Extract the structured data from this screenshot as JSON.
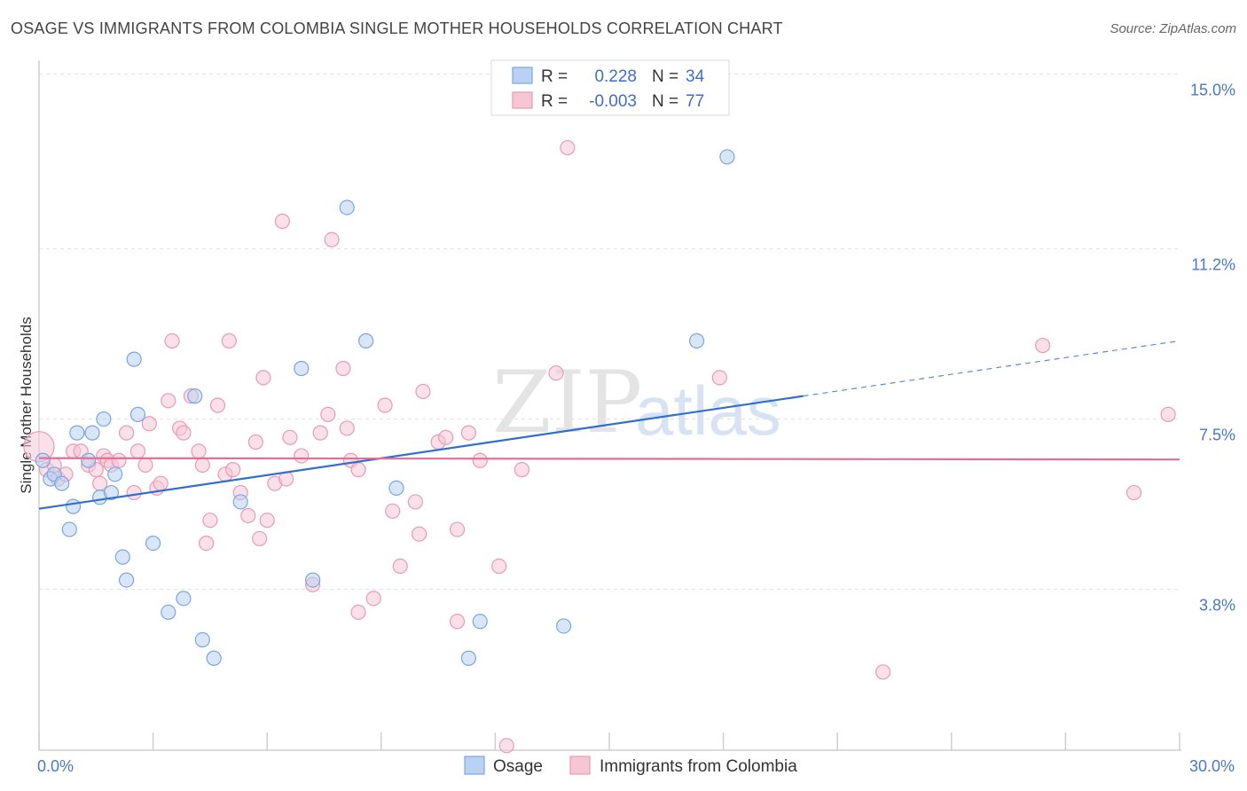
{
  "header": {
    "title": "OSAGE VS IMMIGRANTS FROM COLOMBIA SINGLE MOTHER HOUSEHOLDS CORRELATION CHART",
    "source": "Source: ZipAtlas.com"
  },
  "watermark": {
    "zip": "ZIP",
    "atlas": "atlas"
  },
  "chart_data": {
    "type": "scatter",
    "ylabel": "Single Mother Households",
    "xlim": [
      0,
      30
    ],
    "ylim": [
      0.3,
      15.3
    ],
    "y_ticks": [
      {
        "value": 15.0,
        "label": "15.0%"
      },
      {
        "value": 11.2,
        "label": "11.2%"
      },
      {
        "value": 7.5,
        "label": "7.5%"
      },
      {
        "value": 3.8,
        "label": "3.8%"
      }
    ],
    "x_tick_labels": {
      "min": "0.0%",
      "max": "30.0%"
    },
    "grid": "horizontal dashed",
    "legend": {
      "placement": "top-center",
      "rows": [
        {
          "r_label": "R =",
          "r": " 0.228",
          "n_label": "N =",
          "n": "34"
        },
        {
          "r_label": "R =",
          "r": "-0.003",
          "n_label": "N =",
          "n": "77"
        }
      ]
    },
    "series": [
      {
        "name": "Osage",
        "color": "#7aa6e0",
        "fill": "#b9d1f2",
        "trend": {
          "x0": 0,
          "y0": 5.55,
          "x1": 20.1,
          "y1": 8.0,
          "dash_to_x": 30,
          "dash_to_y": 9.2
        },
        "points": [
          [
            0.1,
            6.6
          ],
          [
            0.3,
            6.2
          ],
          [
            0.4,
            6.3
          ],
          [
            0.6,
            6.1
          ],
          [
            0.9,
            5.6
          ],
          [
            0.8,
            5.1
          ],
          [
            1.0,
            7.2
          ],
          [
            1.3,
            6.6
          ],
          [
            1.4,
            7.2
          ],
          [
            1.6,
            5.8
          ],
          [
            1.7,
            7.5
          ],
          [
            1.9,
            5.9
          ],
          [
            2.0,
            6.3
          ],
          [
            2.2,
            4.5
          ],
          [
            2.3,
            4.0
          ],
          [
            2.5,
            8.8
          ],
          [
            2.6,
            7.6
          ],
          [
            3.0,
            4.8
          ],
          [
            3.4,
            3.3
          ],
          [
            3.8,
            3.6
          ],
          [
            4.1,
            8.0
          ],
          [
            4.3,
            2.7
          ],
          [
            4.6,
            2.3
          ],
          [
            5.3,
            5.7
          ],
          [
            6.9,
            8.6
          ],
          [
            8.1,
            12.1
          ],
          [
            8.6,
            9.2
          ],
          [
            7.2,
            4.0
          ],
          [
            9.4,
            6.0
          ],
          [
            11.6,
            3.1
          ],
          [
            11.3,
            2.3
          ],
          [
            13.8,
            3.0
          ],
          [
            17.3,
            9.2
          ],
          [
            18.1,
            13.2
          ]
        ]
      },
      {
        "name": "Immigrants from Colombia",
        "color": "#e99ab4",
        "fill": "#f6c6d5",
        "trend": {
          "x0": 0,
          "y0": 6.65,
          "x1": 30,
          "y1": 6.62
        },
        "points": [
          [
            0.0,
            6.9
          ],
          [
            0.2,
            6.4
          ],
          [
            0.4,
            6.5
          ],
          [
            0.5,
            6.2
          ],
          [
            0.7,
            6.3
          ],
          [
            0.9,
            6.8
          ],
          [
            1.1,
            6.8
          ],
          [
            1.3,
            6.5
          ],
          [
            1.5,
            6.4
          ],
          [
            1.6,
            6.1
          ],
          [
            1.7,
            6.7
          ],
          [
            1.8,
            6.6
          ],
          [
            1.9,
            6.5
          ],
          [
            2.1,
            6.6
          ],
          [
            2.3,
            7.2
          ],
          [
            2.5,
            5.9
          ],
          [
            2.6,
            6.8
          ],
          [
            2.8,
            6.5
          ],
          [
            2.9,
            7.4
          ],
          [
            3.1,
            6.0
          ],
          [
            3.2,
            6.1
          ],
          [
            3.4,
            7.9
          ],
          [
            3.5,
            9.2
          ],
          [
            3.7,
            7.3
          ],
          [
            3.8,
            7.2
          ],
          [
            4.0,
            8.0
          ],
          [
            4.2,
            6.8
          ],
          [
            4.3,
            6.5
          ],
          [
            4.4,
            4.8
          ],
          [
            4.5,
            5.3
          ],
          [
            4.7,
            7.8
          ],
          [
            4.9,
            6.3
          ],
          [
            5.0,
            9.2
          ],
          [
            5.1,
            6.4
          ],
          [
            5.3,
            5.9
          ],
          [
            5.5,
            5.4
          ],
          [
            5.7,
            7.0
          ],
          [
            5.8,
            4.9
          ],
          [
            5.9,
            8.4
          ],
          [
            6.0,
            5.3
          ],
          [
            6.2,
            6.1
          ],
          [
            6.4,
            11.8
          ],
          [
            6.5,
            6.2
          ],
          [
            6.6,
            7.1
          ],
          [
            6.9,
            6.7
          ],
          [
            7.2,
            3.9
          ],
          [
            7.4,
            7.2
          ],
          [
            7.6,
            7.6
          ],
          [
            7.7,
            11.4
          ],
          [
            8.0,
            8.6
          ],
          [
            8.1,
            7.3
          ],
          [
            8.2,
            6.6
          ],
          [
            8.4,
            3.3
          ],
          [
            8.4,
            6.4
          ],
          [
            8.8,
            3.6
          ],
          [
            9.1,
            7.8
          ],
          [
            9.3,
            5.5
          ],
          [
            9.5,
            4.3
          ],
          [
            9.9,
            5.7
          ],
          [
            10.0,
            5.0
          ],
          [
            10.1,
            8.1
          ],
          [
            10.5,
            7.0
          ],
          [
            10.7,
            7.1
          ],
          [
            11.0,
            3.1
          ],
          [
            11.0,
            5.1
          ],
          [
            11.3,
            7.2
          ],
          [
            11.6,
            6.6
          ],
          [
            12.7,
            6.4
          ],
          [
            12.3,
            0.4
          ],
          [
            13.6,
            8.5
          ],
          [
            13.9,
            13.4
          ],
          [
            17.9,
            8.4
          ],
          [
            22.2,
            2.0
          ],
          [
            26.4,
            9.1
          ],
          [
            28.8,
            5.9
          ],
          [
            29.7,
            7.6
          ],
          [
            12.1,
            4.3
          ]
        ]
      }
    ]
  }
}
